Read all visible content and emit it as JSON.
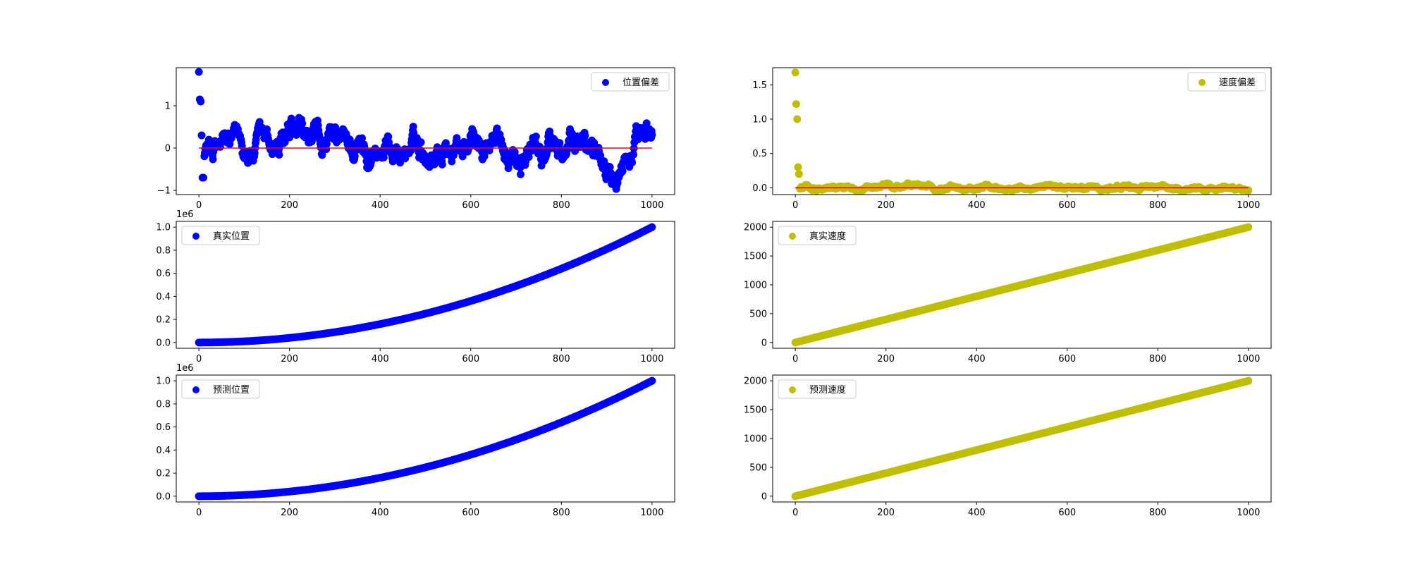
{
  "colors": {
    "blue": "#0000ff",
    "olive": "#bfbf00",
    "red": "#ff0000"
  },
  "chart_data": [
    {
      "id": "pos_err",
      "type": "scatter",
      "legend": "位置偏差",
      "legend_loc": "upper right",
      "color": "#0000ff",
      "ref_line": 0,
      "ref_line_color": "#ff0000",
      "xlim": [
        -50,
        1050
      ],
      "ylim": [
        -1.1,
        1.9
      ],
      "xticks": [
        0,
        200,
        400,
        600,
        800,
        1000
      ],
      "xtick_labels": [
        "0",
        "200",
        "400",
        "600",
        "800",
        "1000"
      ],
      "yticks": [
        -1,
        0,
        1
      ],
      "ytick_labels": [
        "−1",
        "0",
        "1"
      ],
      "y_offset_label": "",
      "series": [
        {
          "kind": "noise",
          "n": 1000,
          "step": 1,
          "initial": [
            1.8,
            1.15,
            1.1,
            0.3,
            -0.7,
            -0.7
          ],
          "mean": 0,
          "amplitude": 0.35,
          "range": [
            -1.0,
            0.95
          ]
        }
      ]
    },
    {
      "id": "vel_err",
      "type": "scatter",
      "legend": "速度偏差",
      "legend_loc": "upper right",
      "color": "#bfbf00",
      "ref_line": 0,
      "ref_line_color": "#ff0000",
      "xlim": [
        -50,
        1050
      ],
      "ylim": [
        -0.1,
        1.75
      ],
      "xticks": [
        0,
        200,
        400,
        600,
        800,
        1000
      ],
      "xtick_labels": [
        "0",
        "200",
        "400",
        "600",
        "800",
        "1000"
      ],
      "yticks": [
        0.0,
        0.5,
        1.0,
        1.5
      ],
      "ytick_labels": [
        "0.0",
        "0.5",
        "1.0",
        "1.5"
      ],
      "y_offset_label": "",
      "series": [
        {
          "kind": "noise",
          "n": 1000,
          "step": 1,
          "initial": [
            1.68,
            1.22,
            1.0,
            0.3,
            0.2
          ],
          "mean": 0,
          "amplitude": 0.03,
          "range": [
            -0.08,
            0.07
          ]
        }
      ]
    },
    {
      "id": "true_pos",
      "type": "scatter",
      "legend": "真实位置",
      "legend_loc": "upper left",
      "color": "#0000ff",
      "xlim": [
        -50,
        1050
      ],
      "ylim": [
        -50000,
        1050000
      ],
      "xticks": [
        0,
        200,
        400,
        600,
        800,
        1000
      ],
      "xtick_labels": [
        "0",
        "200",
        "400",
        "600",
        "800",
        "1000"
      ],
      "yticks": [
        0,
        200000,
        400000,
        600000,
        800000,
        1000000
      ],
      "ytick_labels": [
        "0.0",
        "0.2",
        "0.4",
        "0.6",
        "0.8",
        "1.0"
      ],
      "y_offset_label": "1e6",
      "series": [
        {
          "kind": "quadratic",
          "n": 1000,
          "step": 1,
          "coef": 1.0,
          "x_max": 1000,
          "y_max": 1000000
        }
      ]
    },
    {
      "id": "true_vel",
      "type": "scatter",
      "legend": "真实速度",
      "legend_loc": "upper left",
      "color": "#bfbf00",
      "xlim": [
        -50,
        1050
      ],
      "ylim": [
        -100,
        2100
      ],
      "xticks": [
        0,
        200,
        400,
        600,
        800,
        1000
      ],
      "xtick_labels": [
        "0",
        "200",
        "400",
        "600",
        "800",
        "1000"
      ],
      "yticks": [
        0,
        500,
        1000,
        1500,
        2000
      ],
      "ytick_labels": [
        "0",
        "500",
        "1000",
        "1500",
        "2000"
      ],
      "y_offset_label": "",
      "series": [
        {
          "kind": "linear",
          "n": 1000,
          "step": 1,
          "slope": 2,
          "x_max": 1000,
          "y_max": 2000
        }
      ]
    },
    {
      "id": "pred_pos",
      "type": "scatter",
      "legend": "预测位置",
      "legend_loc": "upper left",
      "color": "#0000ff",
      "xlim": [
        -50,
        1050
      ],
      "ylim": [
        -50000,
        1050000
      ],
      "xticks": [
        0,
        200,
        400,
        600,
        800,
        1000
      ],
      "xtick_labels": [
        "0",
        "200",
        "400",
        "600",
        "800",
        "1000"
      ],
      "yticks": [
        0,
        200000,
        400000,
        600000,
        800000,
        1000000
      ],
      "ytick_labels": [
        "0.0",
        "0.2",
        "0.4",
        "0.6",
        "0.8",
        "1.0"
      ],
      "y_offset_label": "1e6",
      "series": [
        {
          "kind": "quadratic",
          "n": 1000,
          "step": 1,
          "coef": 1.0,
          "x_max": 1000,
          "y_max": 1000000
        }
      ]
    },
    {
      "id": "pred_vel",
      "type": "scatter",
      "legend": "预测速度",
      "legend_loc": "upper left",
      "color": "#bfbf00",
      "xlim": [
        -50,
        1050
      ],
      "ylim": [
        -100,
        2100
      ],
      "xticks": [
        0,
        200,
        400,
        600,
        800,
        1000
      ],
      "xtick_labels": [
        "0",
        "200",
        "400",
        "600",
        "800",
        "1000"
      ],
      "yticks": [
        0,
        500,
        1000,
        1500,
        2000
      ],
      "ytick_labels": [
        "0",
        "500",
        "1000",
        "1500",
        "2000"
      ],
      "y_offset_label": "",
      "series": [
        {
          "kind": "linear",
          "n": 1000,
          "step": 1,
          "slope": 2,
          "x_max": 1000,
          "y_max": 2000
        }
      ]
    }
  ]
}
